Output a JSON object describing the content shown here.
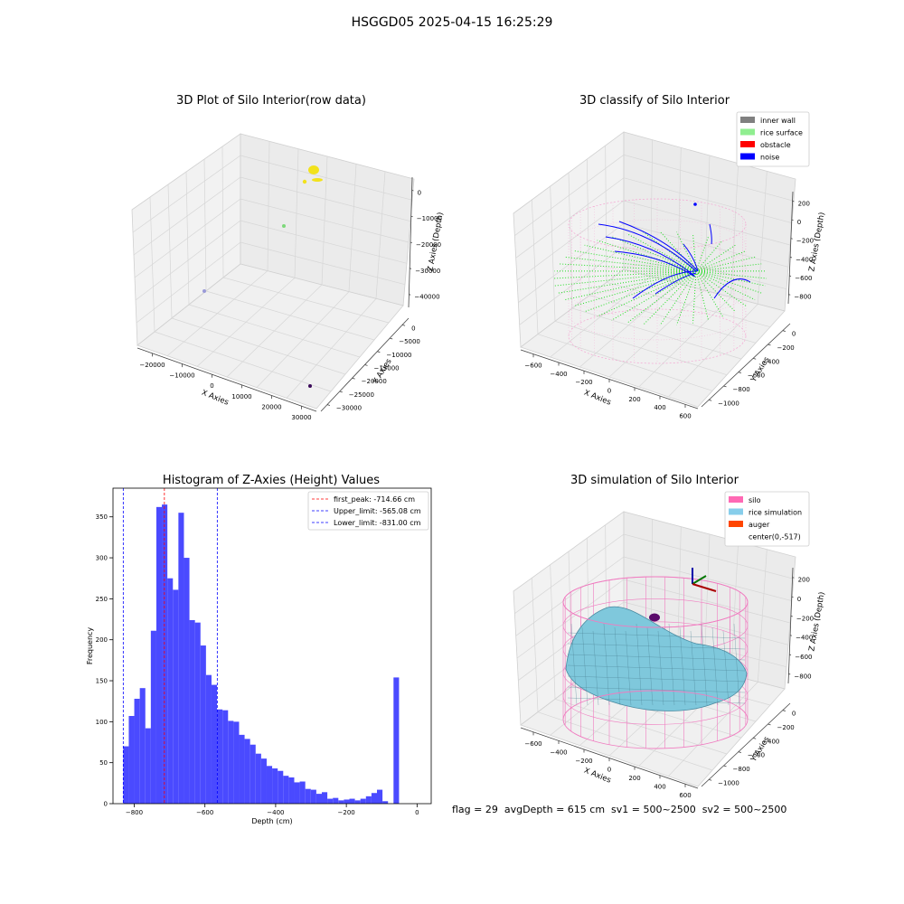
{
  "figure": {
    "title": "HSGGD05 2025-04-15 16:25:29"
  },
  "status": {
    "text": "flag = 29  avgDepth = 615 cm  sv1 = 500~2500  sv2 = 500~2500"
  },
  "panels": {
    "raw": {
      "title": "3D Plot of Silo Interior(row data)",
      "xlabel": "X Axies",
      "ylabel": "Y Axies",
      "zlabel": "Z Axies (Depth)",
      "xticks": [
        "−20000",
        "−10000",
        "0",
        "10000",
        "20000",
        "30000"
      ],
      "yticks": [
        "0",
        "−5000",
        "−10000",
        "−15000",
        "−20000",
        "−25000",
        "−30000"
      ],
      "zticks": [
        "0",
        "−10000",
        "−20000",
        "−30000",
        "−40000"
      ],
      "colors": {
        "cluster": "#f2e21c",
        "green_point": "#7dd87a",
        "blue_point": "#9a9ad8",
        "dark_point": "#3b0a5a"
      }
    },
    "classify": {
      "title": "3D classify of Silo Interior",
      "xlabel": "X Axies",
      "ylabel": "Y Axies",
      "zlabel": "Z Axies (Depth)",
      "xticks": [
        "−600",
        "−400",
        "−200",
        "0",
        "200",
        "400",
        "600"
      ],
      "yticks": [
        "0",
        "−200",
        "−400",
        "−600",
        "−800",
        "−1000"
      ],
      "zticks": [
        "200",
        "0",
        "−200",
        "−400",
        "−600",
        "−800"
      ],
      "legend": [
        {
          "label": "inner wall",
          "color": "#808080"
        },
        {
          "label": "rice surface",
          "color": "#90ee90"
        },
        {
          "label": "obstacle",
          "color": "#ff0000"
        },
        {
          "label": "noise",
          "color": "#0000ff"
        }
      ],
      "colors": {
        "wall": "#f4a6d2",
        "surface": "#22dd22",
        "noise": "#0000ff"
      }
    },
    "simulation": {
      "title": "3D simulation of Silo Interior",
      "xlabel": "X Axies",
      "ylabel": "Y Axies",
      "zlabel": "Z Axies (Depth)",
      "xticks": [
        "−600",
        "−400",
        "−200",
        "0",
        "200",
        "400",
        "600"
      ],
      "yticks": [
        "0",
        "−200",
        "−400",
        "−600",
        "−800",
        "−1000"
      ],
      "zticks": [
        "200",
        "0",
        "−200",
        "−400",
        "−600",
        "−800"
      ],
      "legend": [
        {
          "label": "silo",
          "color": "#ff69b4"
        },
        {
          "label": "rice simulation",
          "color": "#87ceeb"
        },
        {
          "label": "auger",
          "color": "#ff4500"
        },
        {
          "label": "center(0,-517)",
          "color": "none"
        }
      ],
      "colors": {
        "silo": "#f07cc0",
        "surface": "#7fc8dc",
        "auger": "#5a0a6a"
      }
    }
  },
  "chart_data": [
    {
      "type": "histogram",
      "title": "Histogram of Z-Axies (Height) Values",
      "xlabel": "Depth (cm)",
      "ylabel": "Frequency",
      "xlim": [
        -860,
        40
      ],
      "ylim": [
        0,
        385
      ],
      "xticks": [
        -800,
        -600,
        -400,
        -200,
        0
      ],
      "xtick_labels": [
        "−800",
        "−600",
        "−400",
        "−200",
        "0"
      ],
      "yticks": [
        0,
        50,
        100,
        150,
        200,
        250,
        300,
        350
      ],
      "bar_color": "#4a4aff",
      "bin_start": -831,
      "bin_width": 15.6,
      "counts": [
        70,
        107,
        128,
        141,
        92,
        211,
        362,
        365,
        275,
        261,
        355,
        300,
        224,
        221,
        193,
        157,
        145,
        115,
        114,
        101,
        100,
        84,
        79,
        72,
        61,
        55,
        46,
        43,
        40,
        34,
        32,
        26,
        27,
        18,
        17,
        12,
        14,
        6,
        7,
        4,
        5,
        6,
        4,
        6,
        9,
        13,
        17,
        3,
        0,
        154
      ],
      "lines": [
        {
          "name": "first_peak: -714.66 cm",
          "x": -714.66,
          "color": "#ff0000"
        },
        {
          "name": "Upper_limit: -565.08 cm",
          "x": -565.08,
          "color": "#0000ff"
        },
        {
          "name": "Lower_limit: -831.00 cm",
          "x": -831.0,
          "color": "#0000ff"
        }
      ],
      "legend_position": "top-right"
    }
  ]
}
